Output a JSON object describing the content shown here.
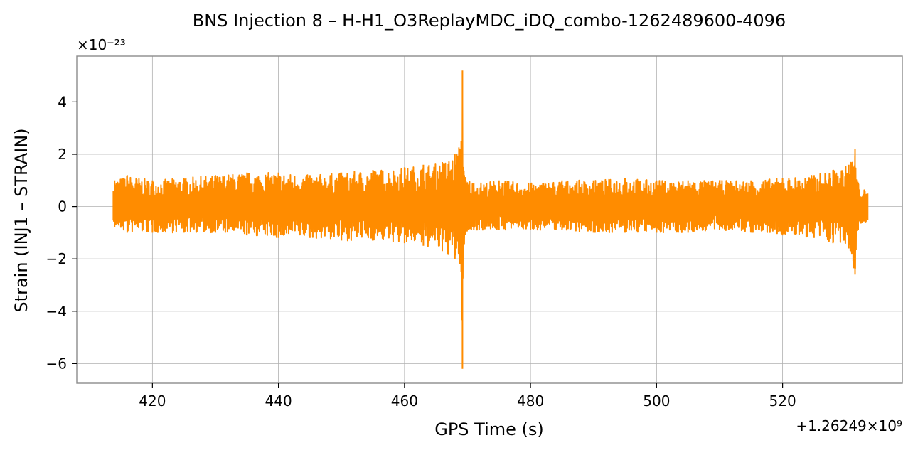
{
  "chart_data": {
    "type": "line",
    "title": "BNS Injection 8 – H-H1_O3ReplayMDC_iDQ_combo-1262489600-4096",
    "xlabel": "GPS Time (s)",
    "ylabel": "Strain (INJ1 – STRAIN)",
    "x_offset_label": "+1.26249×10⁹",
    "y_scale_label": "×10⁻²³",
    "xlim": [
      408,
      539
    ],
    "ylim": [
      -6.75,
      5.75
    ],
    "x_ticks": [
      420,
      440,
      460,
      480,
      500,
      520
    ],
    "x_tick_labels": [
      "420",
      "440",
      "460",
      "480",
      "500",
      "520"
    ],
    "y_ticks": [
      -6,
      -4,
      -2,
      0,
      2,
      4
    ],
    "y_tick_labels": [
      "−6",
      "−4",
      "−2",
      "0",
      "2",
      "4"
    ],
    "grid": true,
    "line_color": "#ff8c00",
    "series": [
      {
        "envelope": [
          {
            "x": 413.8,
            "max": 0.6,
            "min": -0.5
          },
          {
            "x": 414.0,
            "max": 1.0,
            "min": -0.8
          },
          {
            "x": 416.0,
            "max": 1.2,
            "min": -1.0
          },
          {
            "x": 420.0,
            "max": 1.0,
            "min": -1.0
          },
          {
            "x": 425.0,
            "max": 1.1,
            "min": -1.0
          },
          {
            "x": 430.0,
            "max": 1.2,
            "min": -1.0
          },
          {
            "x": 435.0,
            "max": 1.3,
            "min": -1.1
          },
          {
            "x": 440.0,
            "max": 1.3,
            "min": -1.2
          },
          {
            "x": 445.0,
            "max": 1.2,
            "min": -1.2
          },
          {
            "x": 450.0,
            "max": 1.3,
            "min": -1.3
          },
          {
            "x": 455.0,
            "max": 1.4,
            "min": -1.3
          },
          {
            "x": 460.0,
            "max": 1.5,
            "min": -1.4
          },
          {
            "x": 463.0,
            "max": 1.6,
            "min": -1.5
          },
          {
            "x": 466.0,
            "max": 1.7,
            "min": -1.7
          },
          {
            "x": 468.0,
            "max": 2.0,
            "min": -2.0
          },
          {
            "x": 469.0,
            "max": 2.5,
            "min": -2.5
          },
          {
            "x": 469.2,
            "max": 5.2,
            "min": -6.2
          },
          {
            "x": 469.5,
            "max": 1.2,
            "min": -1.2
          },
          {
            "x": 471.0,
            "max": 0.9,
            "min": -0.9
          },
          {
            "x": 475.0,
            "max": 1.0,
            "min": -0.9
          },
          {
            "x": 480.0,
            "max": 0.9,
            "min": -0.9
          },
          {
            "x": 485.0,
            "max": 1.0,
            "min": -0.9
          },
          {
            "x": 490.0,
            "max": 1.0,
            "min": -1.0
          },
          {
            "x": 495.0,
            "max": 1.1,
            "min": -1.0
          },
          {
            "x": 500.0,
            "max": 1.0,
            "min": -1.0
          },
          {
            "x": 505.0,
            "max": 1.0,
            "min": -1.0
          },
          {
            "x": 510.0,
            "max": 1.0,
            "min": -0.9
          },
          {
            "x": 515.0,
            "max": 1.0,
            "min": -1.0
          },
          {
            "x": 520.0,
            "max": 1.1,
            "min": -1.1
          },
          {
            "x": 525.0,
            "max": 1.2,
            "min": -1.2
          },
          {
            "x": 528.0,
            "max": 1.4,
            "min": -1.4
          },
          {
            "x": 530.5,
            "max": 1.6,
            "min": -1.6
          },
          {
            "x": 531.5,
            "max": 2.2,
            "min": -2.6
          },
          {
            "x": 532.0,
            "max": 0.9,
            "min": -0.9
          },
          {
            "x": 533.5,
            "max": 0.5,
            "min": -0.5
          }
        ]
      }
    ]
  }
}
